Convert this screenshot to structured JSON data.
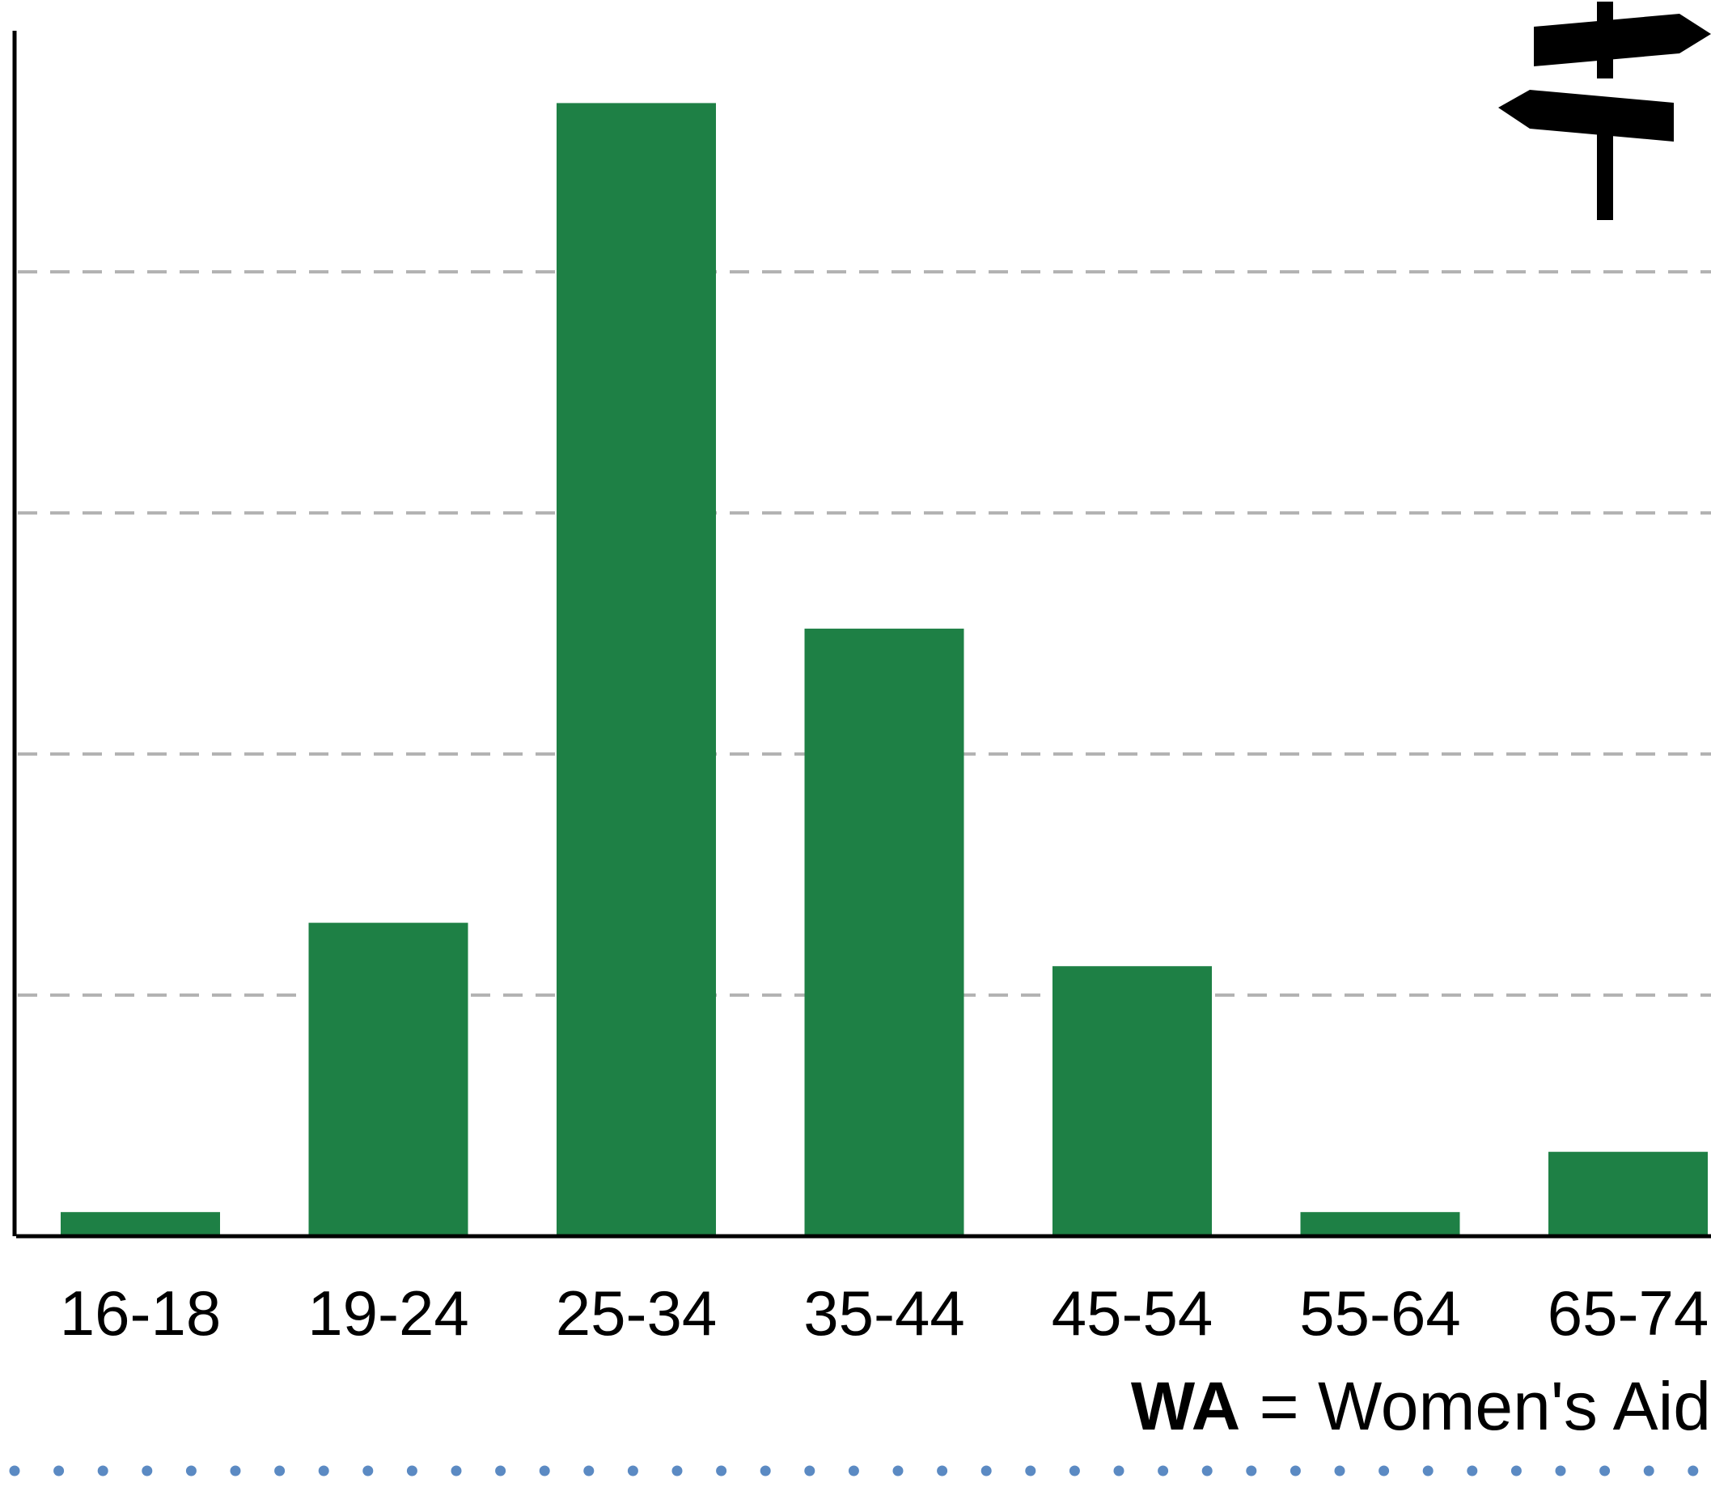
{
  "chart_data": {
    "type": "bar",
    "categories": [
      "16-18",
      "19-24",
      "25-34",
      "35-44",
      "45-54",
      "55-64",
      "65-74"
    ],
    "values": [
      1,
      13,
      47,
      25.2,
      11.2,
      1,
      3.5
    ],
    "ylim": [
      0,
      50
    ],
    "grid_values": [
      10,
      20,
      30,
      40
    ],
    "grid": true,
    "bar_color": "#1e8045",
    "grid_color": "#b3b3b3"
  },
  "footnote": {
    "abbr": "WA",
    "definition": " = Women's Aid"
  },
  "decorations": {
    "signpost_icon": "signpost-icon",
    "divider_color": "#5b8ac3"
  }
}
